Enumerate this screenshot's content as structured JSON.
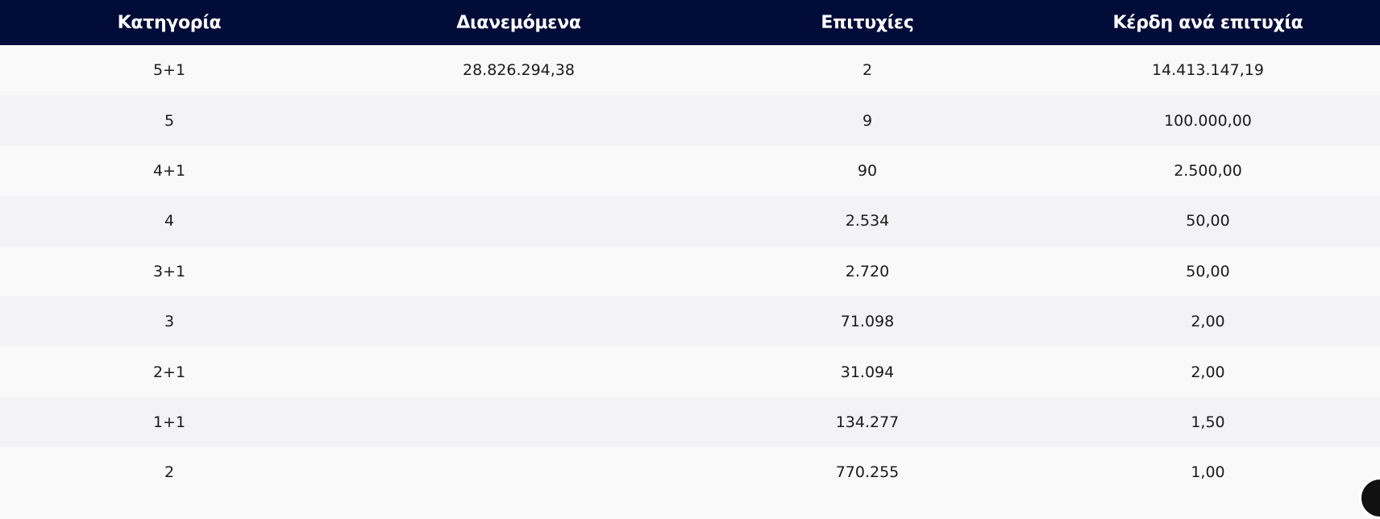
{
  "table": {
    "headers": [
      "Κατηγορία",
      "Διανεμόμενα",
      "Επιτυχίες",
      "Κέρδη ανά επιτυχία"
    ],
    "rows": [
      [
        "5+1",
        "28.826.294,38",
        "2",
        "14.413.147,19"
      ],
      [
        "5",
        "",
        "9",
        "100.000,00"
      ],
      [
        "4+1",
        "",
        "90",
        "2.500,00"
      ],
      [
        "4",
        "",
        "2.534",
        "50,00"
      ],
      [
        "3+1",
        "",
        "2.720",
        "50,00"
      ],
      [
        "3",
        "",
        "71.098",
        "2,00"
      ],
      [
        "2+1",
        "",
        "31.094",
        "2,00"
      ],
      [
        "1+1",
        "",
        "134.277",
        "1,50"
      ],
      [
        "2",
        "",
        "770.255",
        "1,00"
      ]
    ]
  },
  "colors": {
    "header_bg": "#020c38",
    "row_odd": "#f9f9fa",
    "row_even": "#f3f3f5"
  }
}
